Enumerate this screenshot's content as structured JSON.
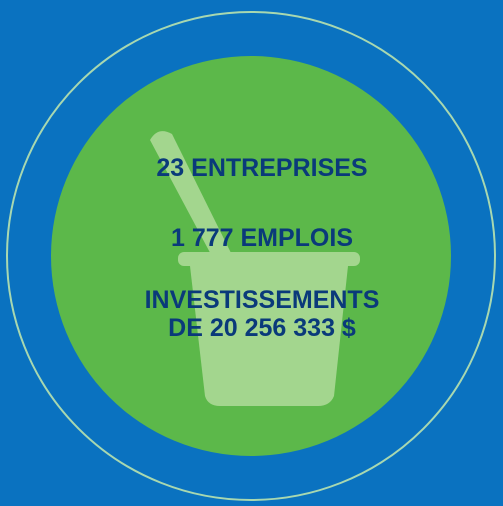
{
  "lines": [
    "23 ENTREPRISES",
    "1 777 EMPLOIS",
    "INVESTISSEMENTS",
    "DE 20 256 333 $"
  ]
}
